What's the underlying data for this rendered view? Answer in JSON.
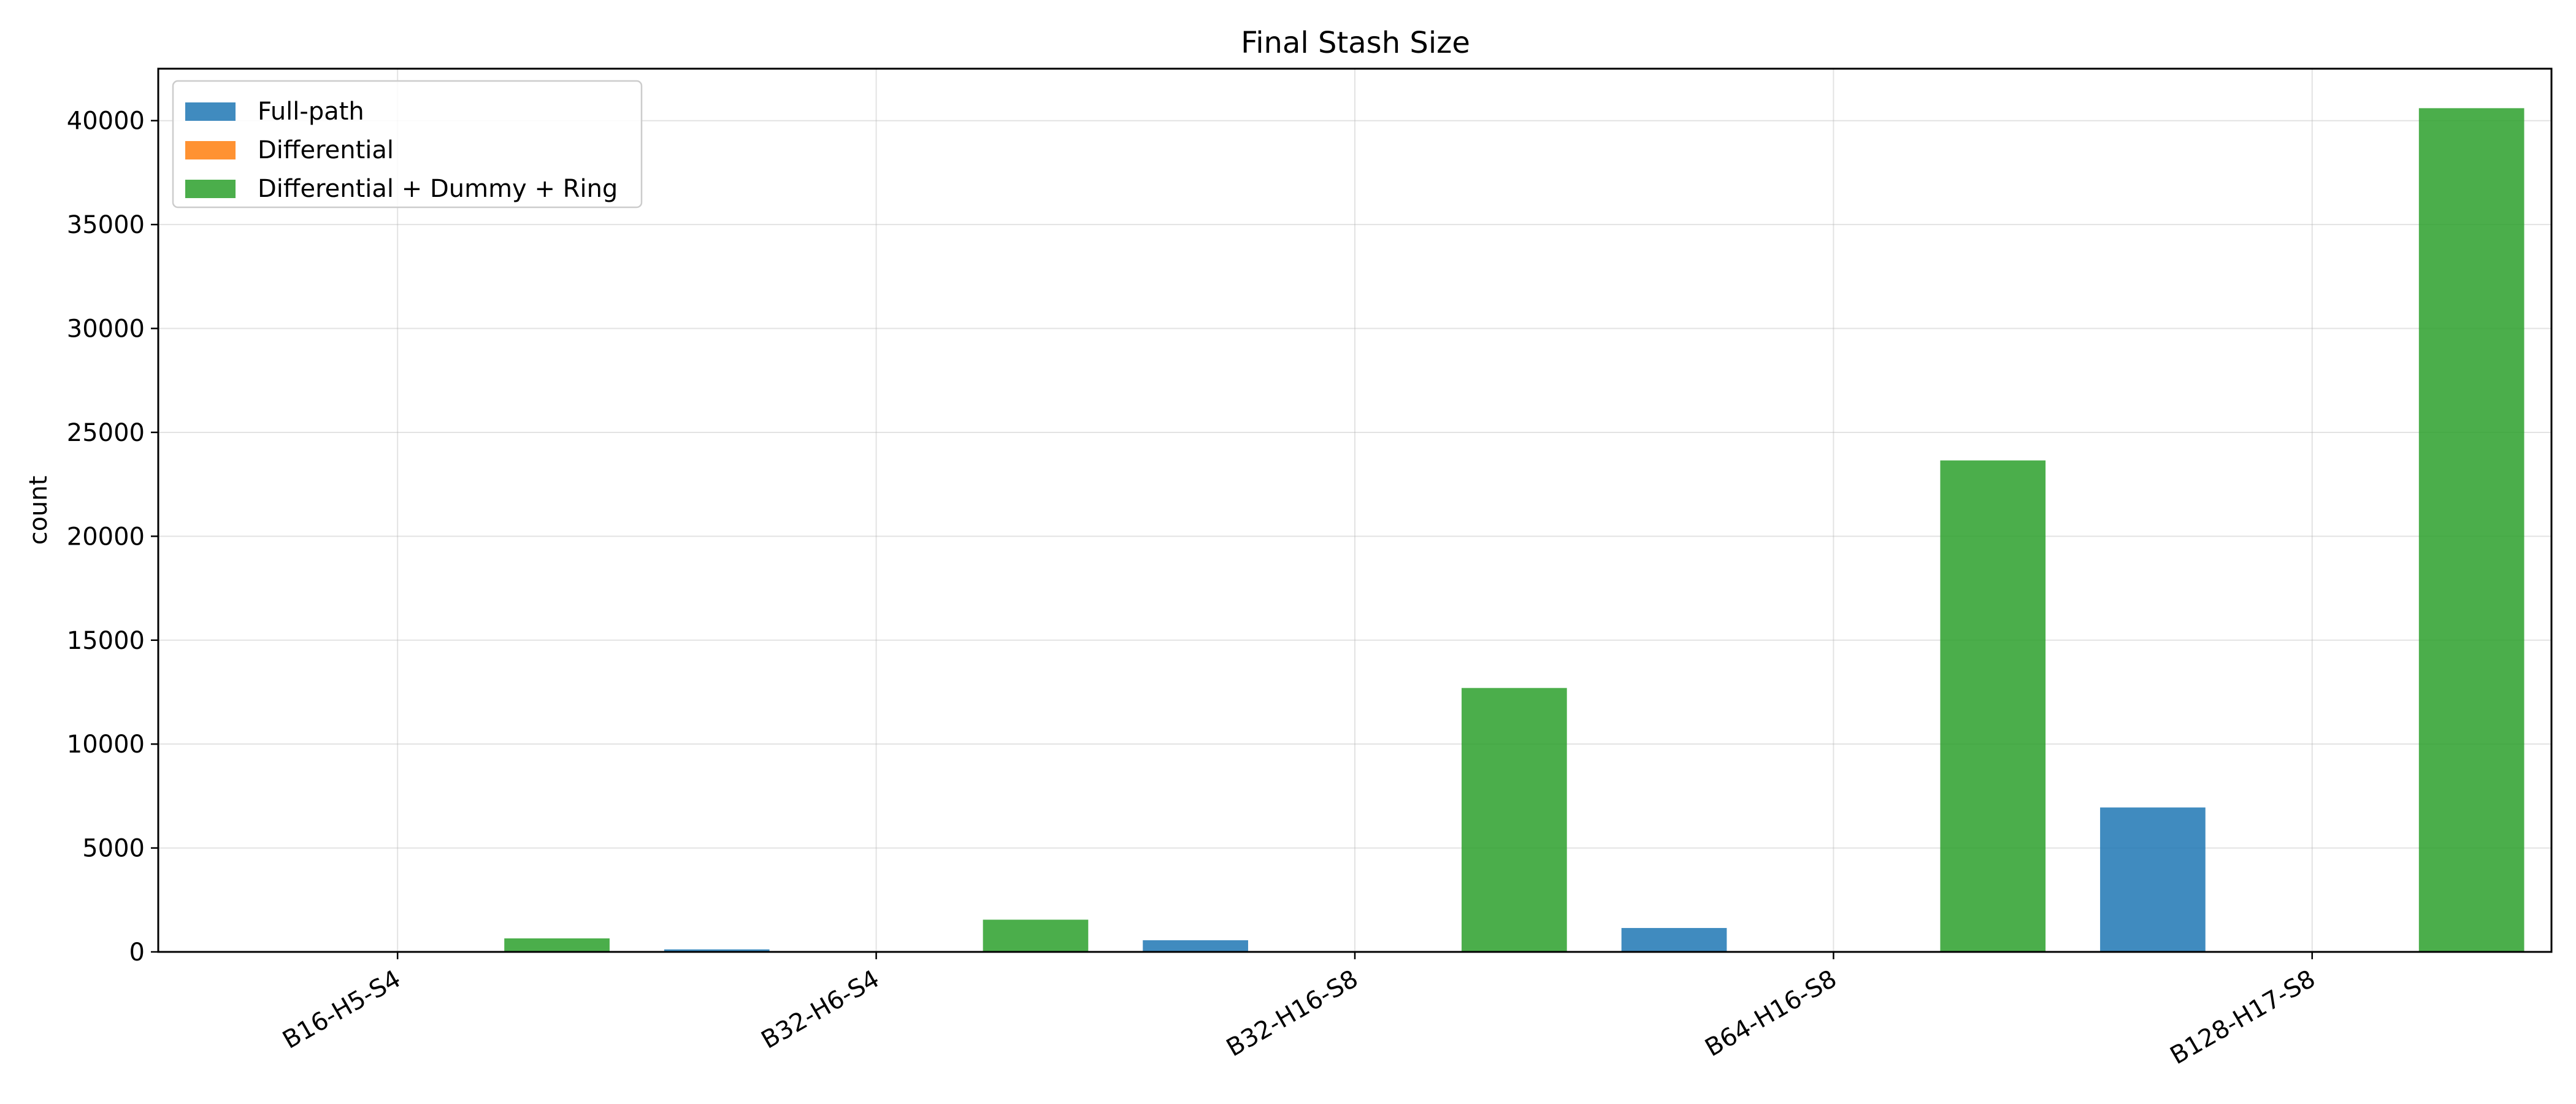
{
  "chart_data": {
    "type": "bar",
    "title": "Final Stash Size",
    "xlabel": "",
    "ylabel": "count",
    "categories": [
      "B16-H5-S4",
      "B32-H6-S4",
      "B32-H16-S8",
      "B64-H16-S8",
      "B128-H17-S8"
    ],
    "series": [
      {
        "name": "Full-path",
        "color": "#1f77b4",
        "values": [
          20,
          120,
          560,
          1150,
          6950
        ]
      },
      {
        "name": "Differential",
        "color": "#ff7f0e",
        "values": [
          0,
          0,
          0,
          0,
          0
        ]
      },
      {
        "name": "Differential + Dummy + Ring",
        "color": "#2ca02c",
        "values": [
          650,
          1550,
          12700,
          23650,
          40600
        ]
      }
    ],
    "yticks": [
      0,
      5000,
      10000,
      15000,
      20000,
      25000,
      30000,
      35000,
      40000
    ],
    "ylim": [
      0,
      42500
    ],
    "grid": true,
    "legend_position": "top-left",
    "xtick_rotation": 30
  }
}
